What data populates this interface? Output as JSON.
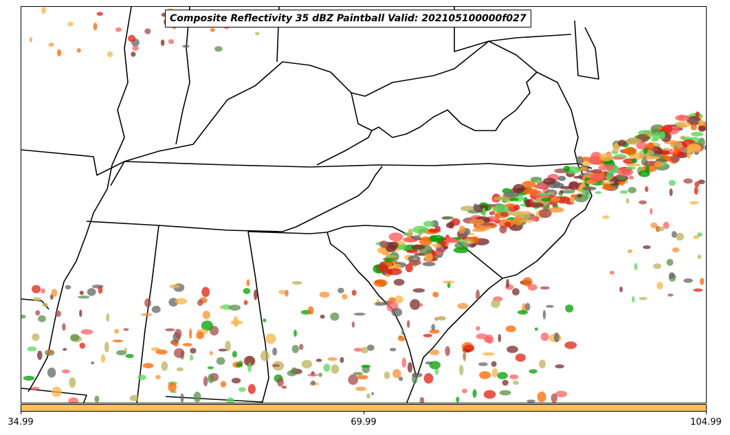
{
  "title": "Composite Reflectivity 35 dBZ Paintball Valid: 202105100000f027",
  "colorbar": {
    "color": "#fdc05c",
    "ticks": [
      "34.99",
      "69.99",
      "104.99"
    ]
  },
  "member_colors": [
    "#ff6060",
    "#f8b44a",
    "#5bd65b",
    "#a84a4a",
    "#bcb35a",
    "#5a8f4a",
    "#666666",
    "#ff9233",
    "#e02010",
    "#00a000",
    "#7a2a2a",
    "#ff6600"
  ]
}
